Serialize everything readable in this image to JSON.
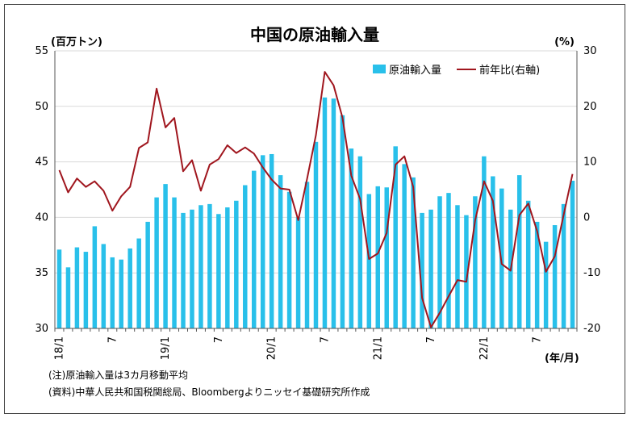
{
  "chart_data": {
    "type": "bar+line",
    "title": "中国の原油輸入量",
    "ylabel_left": "(百万トン)",
    "ylabel_right": "(%)",
    "xlabel": "(年/月)",
    "left_ylim": [
      30,
      55
    ],
    "left_ticks": [
      "30",
      "35",
      "40",
      "45",
      "50",
      "55"
    ],
    "right_ylim": [
      -20,
      30
    ],
    "right_ticks": [
      "-20",
      "-10",
      "0",
      "10",
      "20",
      "30"
    ],
    "x_tick_labels": [
      {
        "index": 0,
        "label": "18/1"
      },
      {
        "index": 6,
        "label": "7"
      },
      {
        "index": 12,
        "label": "19/1"
      },
      {
        "index": 18,
        "label": "7"
      },
      {
        "index": 24,
        "label": "20/1"
      },
      {
        "index": 30,
        "label": "7"
      },
      {
        "index": 36,
        "label": "21/1"
      },
      {
        "index": 42,
        "label": "7"
      },
      {
        "index": 48,
        "label": "22/1"
      },
      {
        "index": 54,
        "label": "7"
      }
    ],
    "series": [
      {
        "name": "原油輸入量",
        "kind": "bar",
        "axis": "left",
        "color": "#29C0EA",
        "values": [
          37.1,
          35.5,
          37.3,
          36.9,
          39.2,
          37.6,
          36.4,
          36.2,
          37.2,
          38.1,
          39.6,
          41.8,
          43.0,
          41.8,
          40.4,
          40.7,
          41.1,
          41.2,
          40.3,
          40.9,
          41.5,
          42.9,
          44.2,
          45.6,
          45.7,
          43.8,
          42.3,
          40.0,
          43.2,
          46.8,
          50.8,
          50.7,
          49.2,
          46.2,
          45.5,
          42.1,
          42.8,
          42.7,
          46.4,
          44.8,
          43.6,
          40.4,
          40.7,
          41.9,
          42.2,
          41.1,
          40.2,
          41.9,
          45.5,
          43.7,
          42.6,
          40.7,
          43.8,
          41.5,
          39.6,
          37.8,
          39.3,
          41.2,
          43.3
        ]
      },
      {
        "name": "前年比(右軸)",
        "kind": "line",
        "axis": "right",
        "color": "#A0161E",
        "values": [
          8.5,
          4.5,
          7.0,
          5.5,
          6.5,
          4.8,
          1.2,
          3.8,
          5.5,
          12.5,
          13.5,
          23.2,
          16.2,
          17.9,
          8.3,
          10.3,
          4.8,
          9.5,
          10.5,
          13.0,
          11.6,
          12.6,
          11.5,
          9.0,
          6.8,
          5.2,
          5.0,
          -0.5,
          6.9,
          14.8,
          26.2,
          23.8,
          18.0,
          7.5,
          3.3,
          -7.5,
          -6.5,
          -2.8,
          9.5,
          11.0,
          5.5,
          -14.5,
          -19.8,
          -17.2,
          -14.2,
          -11.3,
          -11.6,
          -0.5,
          6.5,
          3.0,
          -8.4,
          -9.6,
          0.4,
          2.5,
          -2.5,
          -9.8,
          -7.0,
          0.5,
          7.8
        ]
      }
    ],
    "grid": "horizontal",
    "legend_position": "top-right"
  },
  "notes": {
    "note1": "(注)原油輸入量は3カ月移動平均",
    "note2": "(資料)中華人民共和国税関総局、Bloombergよりニッセイ基礎研究所作成"
  }
}
